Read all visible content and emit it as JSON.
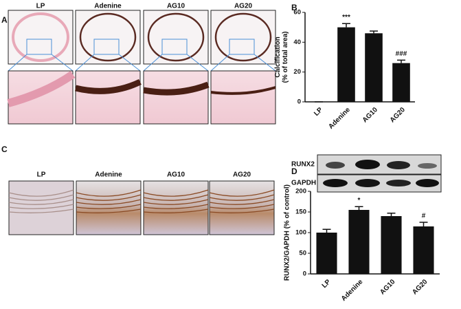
{
  "panels": {
    "a": {
      "label": "A",
      "headers": [
        "LP",
        "Adenine",
        "AG10",
        "AG20"
      ]
    },
    "b": {
      "label": "B"
    },
    "c": {
      "label": "C",
      "headers": [
        "LP",
        "Adenine",
        "AG10",
        "AG20"
      ]
    },
    "d": {
      "label": "D",
      "blots": [
        "RUNX2",
        "GAPDH"
      ]
    }
  },
  "chart_data": [
    {
      "type": "bar",
      "y_label": [
        "Calcification",
        "(% of total area)"
      ],
      "categories": [
        "LP",
        "Adenine",
        "AG10",
        "AG20"
      ],
      "values": [
        0,
        50,
        46,
        26
      ],
      "errors": [
        0,
        2.5,
        1.5,
        2
      ],
      "color": "#111111",
      "ylim": [
        0,
        60
      ],
      "yticks": [
        0,
        20,
        40,
        60
      ],
      "annotations": [
        {
          "text": "***",
          "category": "Adenine"
        },
        {
          "text": "###",
          "category": "AG20"
        }
      ]
    },
    {
      "type": "bar",
      "y_label": [
        "RUNX2/GAPDH (% of control)"
      ],
      "categories": [
        "LP",
        "Adenine",
        "AG10",
        "AG20"
      ],
      "values": [
        100,
        155,
        140,
        115
      ],
      "errors": [
        8,
        8,
        7,
        10
      ],
      "color": "#111111",
      "ylim": [
        0,
        200
      ],
      "yticks": [
        0,
        50,
        100,
        150,
        200
      ],
      "annotations": [
        {
          "text": "*",
          "category": "Adenine"
        },
        {
          "text": "#",
          "category": "AG20"
        }
      ]
    }
  ]
}
